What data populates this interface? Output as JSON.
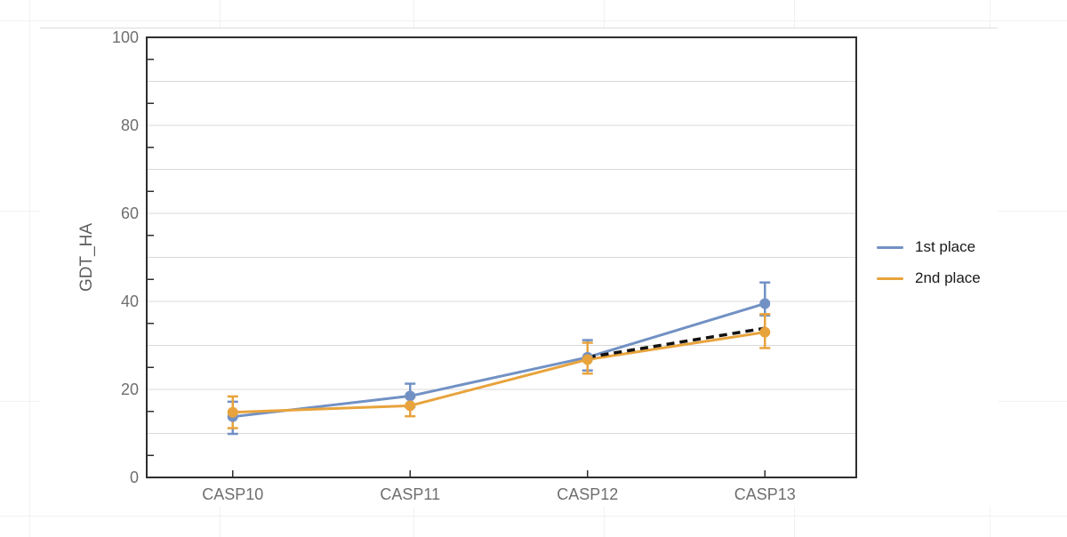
{
  "background_grid": {
    "color": "#f1f1f1",
    "vertical_x": [
      33,
      247,
      465,
      679,
      893,
      1113
    ],
    "horizontal_y": [
      23,
      237,
      451,
      580
    ]
  },
  "chart_data": {
    "type": "line",
    "title": "",
    "xlabel": "",
    "ylabel": "GDT_HA",
    "categories": [
      "CASP10",
      "CASP11",
      "CASP12",
      "CASP13"
    ],
    "ylim": [
      0,
      100
    ],
    "y_ticks": [
      0,
      20,
      40,
      60,
      80,
      100
    ],
    "gridline_step": 10,
    "minor_tick_step": 5,
    "grid": true,
    "legend_position": "right-outside",
    "series": [
      {
        "name": "1st place",
        "color": "#7191c4",
        "values": [
          13.8,
          18.5,
          27.3,
          39.5
        ],
        "error_low": [
          9.9,
          16.0,
          24.3,
          36.8
        ],
        "error_high": [
          17.2,
          21.3,
          31.2,
          44.3
        ]
      },
      {
        "name": "2nd place",
        "color": "#e8a33c",
        "values": [
          14.8,
          16.3,
          26.8,
          33.0
        ],
        "error_low": [
          11.2,
          13.9,
          23.6,
          29.4
        ],
        "error_high": [
          18.4,
          18.2,
          30.6,
          37.1
        ]
      }
    ],
    "trend_line": {
      "style": "dashed",
      "color": "#111111",
      "dash_pattern": "9 6",
      "points": [
        {
          "category": "CASP12",
          "value": 27.3
        },
        {
          "category": "CASP13",
          "value": 33.9
        }
      ]
    }
  },
  "colors": {
    "plot_border": "#2e2e2e",
    "gridline": "#d9d9d9",
    "axis_label": "#6e6e6e",
    "axis_title": "#5f5f5f",
    "legend_text": "#1a1a1a",
    "canvas_background": "#ffffff"
  }
}
